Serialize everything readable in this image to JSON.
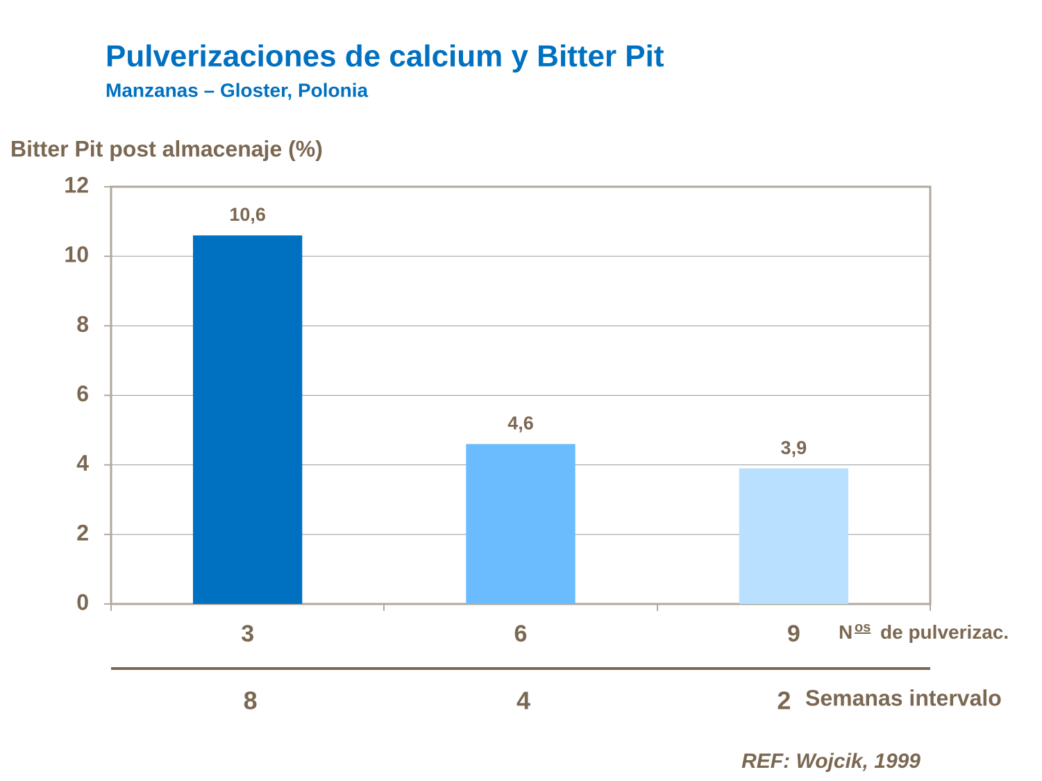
{
  "chart_data": {
    "type": "bar",
    "title": "Pulverizaciones de calcium y Bitter Pit",
    "subtitle": "Manzanas – Gloster, Polonia",
    "ylabel": "Bitter Pit post almacenaje (%)",
    "categories": [
      "3",
      "6",
      "9"
    ],
    "values": [
      10.6,
      4.6,
      3.9
    ],
    "value_labels": [
      "10,6",
      "4,6",
      "3,9"
    ],
    "colors": [
      "#0070c0",
      "#6bbcff",
      "#b9e0ff"
    ],
    "xlabel": [
      "N",
      "os",
      "de pulverizac."
    ],
    "secondary_categories": [
      "8",
      "4",
      "2"
    ],
    "secondary_label": "Semanas intervalo",
    "reference": "REF: Wojcik, 1999",
    "ylim": [
      0,
      12
    ],
    "yticks": [
      0,
      2,
      4,
      6,
      8,
      10,
      12
    ],
    "grid": true
  }
}
